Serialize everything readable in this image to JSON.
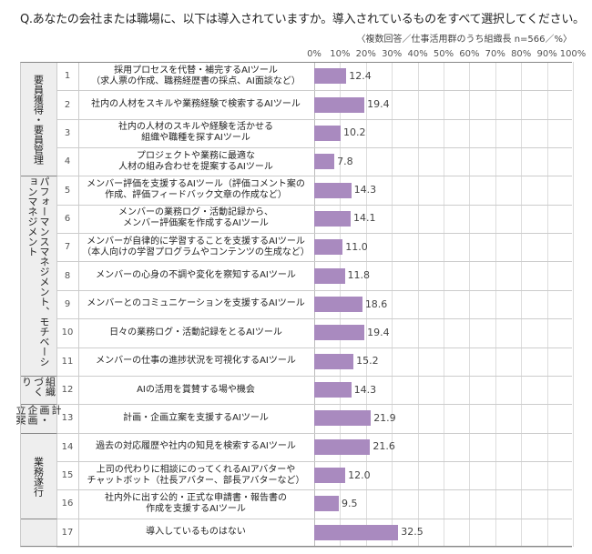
{
  "title": "Q.あなたの会社または職場に、以下は導入されていますか。導入されているものをすべて選択してください。",
  "note": "〈複数回答／仕事活用群のうち組織長 n=566／%〉",
  "chart_data": {
    "type": "bar",
    "orientation": "horizontal",
    "title": "Q.あなたの会社または職場に、以下は導入されていますか。導入されているものをすべて選択してください。",
    "xlim": [
      0,
      100
    ],
    "ticks": [
      "0%",
      "10%",
      "20%",
      "30%",
      "40%",
      "50%",
      "60%",
      "70%",
      "80%",
      "90%",
      "100%"
    ],
    "grid": true,
    "bar_color": "#a98abf",
    "sections": [
      {
        "label": "要員獲得・要員管理",
        "rows": 4
      },
      {
        "label": "パフォーマンスマネジメント、モチベーションマネジメント",
        "rows": 7
      },
      {
        "label": "組織づくり",
        "rows": 1
      },
      {
        "label": "計画・企画立案",
        "rows": 1
      },
      {
        "label": "業務遂行",
        "rows": 3
      },
      {
        "label": "",
        "rows": 1
      }
    ],
    "categories": [
      {
        "no": "1",
        "label": "採用プロセスを代替・補完するAIツール\n（求人票の作成、職務経歴書の採点、AI面談など）",
        "value": 12.4
      },
      {
        "no": "2",
        "label": "社内の人材をスキルや業務経験で検索するAIツール",
        "value": 19.4
      },
      {
        "no": "3",
        "label": "社内の人材のスキルや経験を活かせる\n組織や職種を探すAIツール",
        "value": 10.2
      },
      {
        "no": "4",
        "label": "プロジェクトや業務に最適な\n人材の組み合わせを提案するAIツール",
        "value": 7.8
      },
      {
        "no": "5",
        "label": "メンバー評価を支援するAIツール（評価コメント案の\n作成、評価フィードバック文章の作成など）",
        "value": 14.3
      },
      {
        "no": "6",
        "label": "メンバーの業務ログ・活動記録から、\nメンバー評価案を作成するAIツール",
        "value": 14.1
      },
      {
        "no": "7",
        "label": "メンバーが自律的に学習することを支援するAIツール\n（本人向けの学習プログラムやコンテンツの生成など）",
        "value": 11.0
      },
      {
        "no": "8",
        "label": "メンバーの心身の不調や変化を察知するAIツール",
        "value": 11.8
      },
      {
        "no": "9",
        "label": "メンバーとのコミュニケーションを支援するAIツール",
        "value": 18.6
      },
      {
        "no": "10",
        "label": "日々の業務ログ・活動記録をとるAIツール",
        "value": 19.4
      },
      {
        "no": "11",
        "label": "メンバーの仕事の進捗状況を可視化するAIツール",
        "value": 15.2
      },
      {
        "no": "12",
        "label": "AIの活用を賞賛する場や機会",
        "value": 14.3
      },
      {
        "no": "13",
        "label": "計画・企画立案を支援するAIツール",
        "value": 21.9
      },
      {
        "no": "14",
        "label": "過去の対応履歴や社内の知見を検索するAIツール",
        "value": 21.6
      },
      {
        "no": "15",
        "label": "上司の代わりに相談にのってくれるAIアバターや\nチャットボット（社長アバター、部長アバターなど）",
        "value": 12.0
      },
      {
        "no": "16",
        "label": "社内外に出す公的・正式な申請書・報告書の\n作成を支援するAIツール",
        "value": 9.5
      },
      {
        "no": "17",
        "label": "導入しているものはない",
        "value": 32.5
      }
    ]
  }
}
